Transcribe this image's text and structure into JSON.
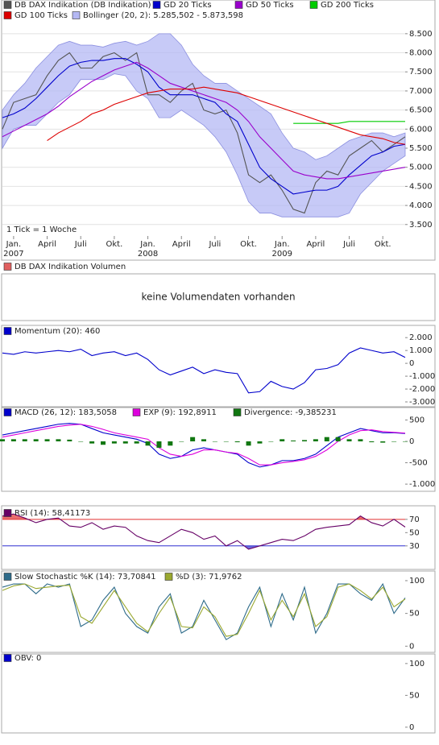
{
  "chart_data": [
    {
      "type": "line",
      "annotation": "1 Tick = 1 Woche",
      "xlim": [
        0,
        36
      ],
      "xticks": [
        {
          "value": 1,
          "label": "Jan."
        },
        {
          "value": 4,
          "label": "April"
        },
        {
          "value": 7,
          "label": "Juli"
        },
        {
          "value": 10,
          "label": "Okt."
        },
        {
          "value": 13,
          "label": "Jan."
        },
        {
          "value": 16,
          "label": "April"
        },
        {
          "value": 19,
          "label": "Juli"
        },
        {
          "value": 22,
          "label": "Okt."
        },
        {
          "value": 25,
          "label": "Jan."
        },
        {
          "value": 28,
          "label": "April"
        },
        {
          "value": 31,
          "label": "Juli"
        },
        {
          "value": 34,
          "label": "Okt."
        }
      ],
      "year_ticks": [
        {
          "value": 1,
          "label": "2007"
        },
        {
          "value": 13,
          "label": "2008"
        },
        {
          "value": 25,
          "label": "2009"
        }
      ],
      "ylim": [
        3200,
        8750
      ],
      "yticks": [
        {
          "value": 3500,
          "label": "3.500"
        },
        {
          "value": 4000,
          "label": "4.000"
        },
        {
          "value": 4500,
          "label": "4.500"
        },
        {
          "value": 5000,
          "label": "5.000"
        },
        {
          "value": 5500,
          "label": "5.500"
        },
        {
          "value": 6000,
          "label": "6.000"
        },
        {
          "value": 6500,
          "label": "6.500"
        },
        {
          "value": 7000,
          "label": "7.000"
        },
        {
          "value": 7500,
          "label": "7.500"
        },
        {
          "value": 8000,
          "label": "8.000"
        },
        {
          "value": 8500,
          "label": "8.500"
        }
      ],
      "grid": true,
      "series": [
        {
          "name": "DB DAX Indikation (DB Indikation)",
          "color": "#555555",
          "values": [
            6000,
            6700,
            6800,
            6900,
            7400,
            7800,
            8000,
            7600,
            7600,
            7900,
            8000,
            7800,
            8000,
            6900,
            6900,
            6700,
            7000,
            7200,
            6500,
            6400,
            6500,
            5900,
            4800,
            4600,
            4800,
            4400,
            3900,
            3800,
            4600,
            4900,
            4800,
            5300,
            5500,
            5700,
            5400,
            5600,
            5800
          ]
        },
        {
          "name": "GD 20 Ticks",
          "color": "#0000cc",
          "values": [
            6300,
            6400,
            6550,
            6800,
            7100,
            7400,
            7650,
            7750,
            7800,
            7800,
            7850,
            7850,
            7700,
            7500,
            7100,
            6900,
            6900,
            6900,
            6800,
            6700,
            6400,
            6200,
            5600,
            5000,
            4700,
            4500,
            4300,
            4350,
            4400,
            4400,
            4500,
            4800,
            5050,
            5300,
            5400,
            5550,
            5600
          ]
        },
        {
          "name": "GD 50 Ticks",
          "color": "#9900cc",
          "values": [
            5800,
            5950,
            6100,
            6250,
            6400,
            6600,
            6850,
            7050,
            7250,
            7400,
            7550,
            7650,
            7750,
            7600,
            7400,
            7200,
            7100,
            7000,
            6900,
            6800,
            6700,
            6500,
            6200,
            5800,
            5500,
            5200,
            4900,
            4800,
            4750,
            4700,
            4700,
            4750,
            4800,
            4850,
            4900,
            4950,
            5000
          ]
        },
        {
          "name": "GD 200 Ticks",
          "color": "#00cc00",
          "values": [
            null,
            null,
            null,
            null,
            null,
            null,
            null,
            null,
            null,
            null,
            null,
            null,
            null,
            null,
            null,
            null,
            null,
            null,
            null,
            null,
            null,
            null,
            null,
            null,
            null,
            null,
            6150,
            6150,
            6150,
            6150,
            6150,
            6200,
            6200,
            6200,
            6200,
            6200,
            6200
          ]
        },
        {
          "name": "GD 100 Ticks",
          "color": "#dd0000",
          "values": [
            null,
            null,
            null,
            null,
            5700,
            5900,
            6050,
            6200,
            6400,
            6500,
            6650,
            6750,
            6850,
            6950,
            7000,
            7050,
            7050,
            7050,
            7100,
            7050,
            7000,
            6950,
            6850,
            6750,
            6650,
            6550,
            6450,
            6350,
            6250,
            6150,
            6050,
            5950,
            5850,
            5800,
            5750,
            5650,
            5600
          ]
        },
        {
          "name": "Bollinger (20, 2): 5.285,502 - 5.873,598",
          "color": "#b4b8f4",
          "kind": "band",
          "values": [
            6500,
            6900,
            7200,
            7600,
            7900,
            8200,
            8300,
            8200,
            8200,
            8150,
            8250,
            8300,
            8200,
            8300,
            8500,
            8500,
            8200,
            7700,
            7400,
            7200,
            7200,
            7000,
            6800,
            6600,
            6400,
            5900,
            5500,
            5400,
            5200,
            5300,
            5500,
            5700,
            5800,
            5900,
            5900,
            5800,
            5900
          ],
          "lower": [
            5500,
            6000,
            6100,
            6100,
            6400,
            6700,
            6900,
            7300,
            7300,
            7300,
            7450,
            7400,
            7000,
            6800,
            6300,
            6300,
            6500,
            6300,
            6100,
            5800,
            5400,
            4800,
            4100,
            3800,
            3800,
            3700,
            3700,
            3700,
            3700,
            3700,
            3700,
            3800,
            4300,
            4600,
            4900,
            5100,
            5300
          ]
        }
      ]
    },
    {
      "type": "note",
      "annotation": "keine Volumendaten vorhanden",
      "series": [
        {
          "name": "DB DAX Indikation Volumen",
          "color": "#e06060"
        }
      ]
    },
    {
      "type": "line",
      "xlim": [
        0,
        36
      ],
      "ylim": [
        -3250,
        2450
      ],
      "yticks": [
        {
          "value": 2000,
          "label": "2.000"
        },
        {
          "value": 1000,
          "label": "1.000"
        },
        0,
        {
          "value": -1000,
          "label": "-1.000"
        },
        {
          "value": -2000,
          "label": "-2.000"
        },
        {
          "value": -3000,
          "label": "-3.000"
        }
      ],
      "series": [
        {
          "name": "Momentum (20): 460",
          "color": "#0000cc",
          "values": [
            800,
            700,
            900,
            800,
            900,
            1000,
            900,
            1100,
            600,
            800,
            900,
            600,
            800,
            300,
            -500,
            -900,
            -600,
            -300,
            -800,
            -500,
            -700,
            -800,
            -2300,
            -2200,
            -1400,
            -1800,
            -2000,
            -1500,
            -500,
            -400,
            -100,
            800,
            1200,
            1000,
            800,
            900,
            460
          ]
        }
      ]
    },
    {
      "type": "line",
      "xlim": [
        0,
        36
      ],
      "ylim": [
        -1130,
        640
      ],
      "yticks": [
        500,
        0,
        -500,
        {
          "value": -1000,
          "label": "-1.000"
        }
      ],
      "series": [
        {
          "name": "MACD (26, 12): 183,5058",
          "color": "#0000cc",
          "values": [
            150,
            200,
            250,
            300,
            350,
            400,
            420,
            400,
            300,
            200,
            150,
            100,
            50,
            -50,
            -300,
            -400,
            -350,
            -200,
            -150,
            -200,
            -250,
            -300,
            -500,
            -600,
            -550,
            -450,
            -450,
            -400,
            -300,
            -100,
            100,
            200,
            300,
            250,
            200,
            200,
            183.5058
          ]
        },
        {
          "name": "EXP (9): 192,8911",
          "color": "#dd00dd",
          "values": [
            100,
            150,
            200,
            250,
            300,
            350,
            380,
            400,
            350,
            280,
            200,
            150,
            100,
            50,
            -150,
            -300,
            -350,
            -300,
            -200,
            -200,
            -250,
            -280,
            -400,
            -550,
            -550,
            -500,
            -470,
            -430,
            -350,
            -200,
            0,
            150,
            250,
            270,
            230,
            210,
            192.8911
          ]
        },
        {
          "name": "Divergence: -9,385231",
          "color": "#117711",
          "kind": "bar",
          "values": [
            50,
            50,
            50,
            50,
            50,
            50,
            40,
            0,
            -50,
            -80,
            -50,
            -50,
            -50,
            -100,
            -150,
            -100,
            0,
            100,
            50,
            0,
            0,
            -20,
            -100,
            -50,
            0,
            50,
            20,
            30,
            50,
            100,
            100,
            50,
            50,
            -20,
            -30,
            -10,
            -9.385231
          ]
        }
      ]
    },
    {
      "type": "line",
      "xlim": [
        0,
        36
      ],
      "ylim": [
        -3,
        88
      ],
      "yticks": [
        70,
        50,
        30
      ],
      "levels": [
        {
          "value": 70,
          "color": "#e03030",
          "side": "above"
        },
        {
          "value": 30,
          "color": "#3030d0",
          "side": "below"
        }
      ],
      "series": [
        {
          "name": "RSI (14): 58,41173",
          "color": "#660066",
          "values": [
            75,
            78,
            72,
            65,
            70,
            72,
            60,
            58,
            65,
            55,
            60,
            58,
            45,
            38,
            35,
            45,
            55,
            50,
            40,
            45,
            30,
            38,
            25,
            30,
            35,
            40,
            38,
            45,
            55,
            58,
            60,
            62,
            75,
            65,
            60,
            70,
            58.41173
          ]
        }
      ]
    },
    {
      "type": "line",
      "xlim": [
        0,
        36
      ],
      "ylim": [
        -7,
        111
      ],
      "yticks": [
        100,
        50,
        0
      ],
      "series": [
        {
          "name": "Slow Stochastic %K (14): 73,70841",
          "color": "#2e6b8a",
          "values": [
            90,
            95,
            95,
            80,
            95,
            90,
            95,
            30,
            40,
            70,
            90,
            50,
            30,
            20,
            60,
            80,
            20,
            30,
            70,
            40,
            10,
            20,
            60,
            90,
            30,
            80,
            40,
            90,
            20,
            50,
            95,
            95,
            80,
            70,
            95,
            50,
            73.70841
          ]
        },
        {
          "name": "%D (3): 71,9762",
          "color": "#9aa830",
          "values": [
            85,
            92,
            95,
            88,
            90,
            92,
            93,
            45,
            35,
            60,
            85,
            60,
            35,
            22,
            50,
            75,
            30,
            28,
            60,
            45,
            15,
            18,
            50,
            85,
            40,
            70,
            45,
            80,
            30,
            45,
            90,
            95,
            85,
            72,
            90,
            60,
            71.9762
          ]
        }
      ]
    },
    {
      "type": "line",
      "xlim": [
        0,
        36
      ],
      "ylim": [
        -9,
        115
      ],
      "yticks": [
        100,
        50,
        0
      ],
      "series": [
        {
          "name": "OBV: 0",
          "color": "#0000cc"
        }
      ]
    }
  ]
}
